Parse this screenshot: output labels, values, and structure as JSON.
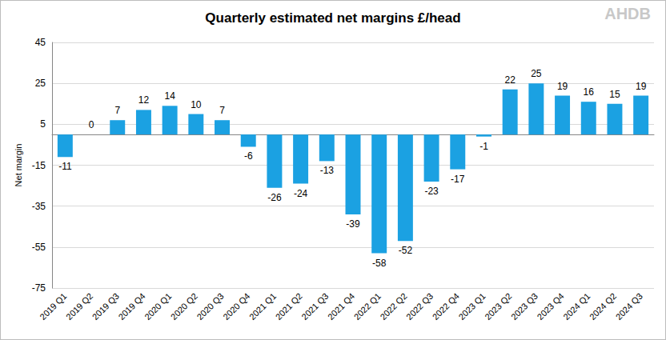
{
  "chart_data": {
    "type": "bar",
    "title": "Quarterly estimated net margins £/head",
    "y_label": "Net margin",
    "annotations": [
      "AHDB"
    ],
    "categories": [
      "2019 Q1",
      "2019 Q2",
      "2019 Q3",
      "2019 Q4",
      "2020 Q1",
      "2020 Q2",
      "2020 Q3",
      "2020 Q4",
      "2021 Q1",
      "2021 Q2",
      "2021 Q3",
      "2021 Q4",
      "2022 Q1",
      "2022 Q2",
      "2022 Q3",
      "2022 Q4",
      "2023 Q1",
      "2023 Q2",
      "2023 Q3",
      "2023 Q4",
      "2024 Q1",
      "2024 Q2",
      "2024 Q3"
    ],
    "values": [
      -11,
      0,
      7,
      12,
      14,
      10,
      7,
      -6,
      -26,
      -24,
      -13,
      -39,
      -58,
      -52,
      -23,
      -17,
      -1,
      22,
      25,
      19,
      16,
      15,
      19
    ],
    "color": "#1ba1e2",
    "ylim": [
      -75,
      45
    ],
    "yticks": [
      -75,
      -55,
      -35,
      -15,
      5,
      25,
      45
    ],
    "grid": true,
    "data_labels": true
  }
}
